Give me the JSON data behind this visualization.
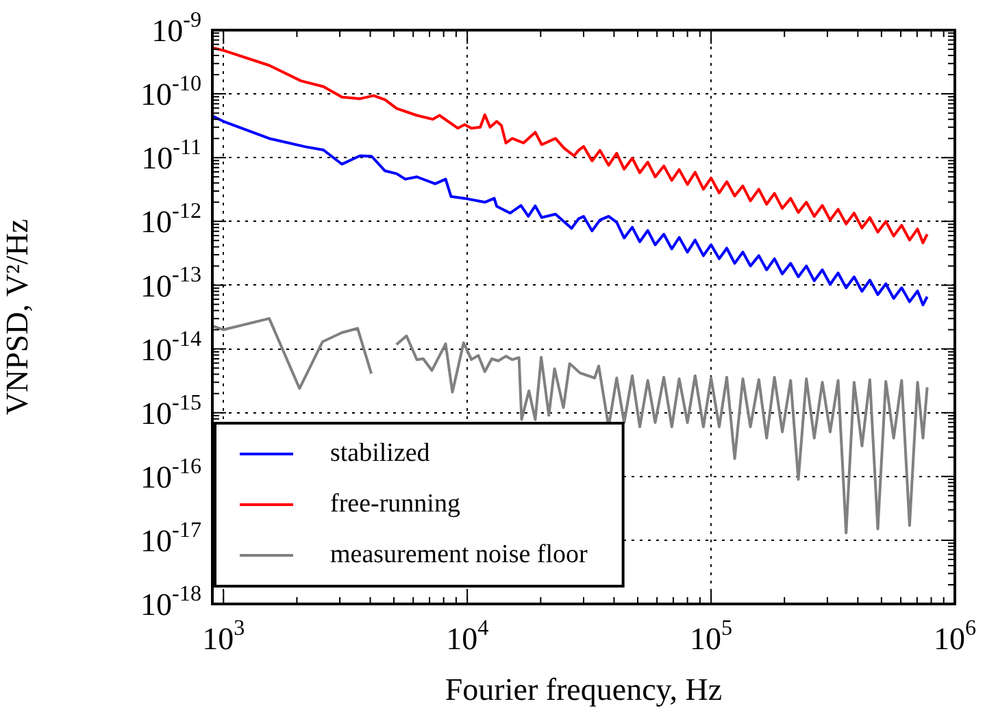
{
  "chart_data": {
    "type": "line",
    "xlabel": "Fourier frequency, Hz",
    "ylabel": "VNPSD, V²/Hz",
    "log": "xy",
    "grid": true,
    "legend": "bottom left",
    "xlim": [
      900,
      1000000
    ],
    "ylim": [
      1e-18,
      1e-09
    ],
    "xticks": [
      {
        "value": 1000,
        "label": "10$^{3}$"
      },
      {
        "value": 10000,
        "label": "10$^{4}$"
      },
      {
        "value": 100000,
        "label": "10$^{5}$"
      },
      {
        "value": 1000000,
        "label": "10$^{6}$"
      }
    ],
    "yticks": [
      {
        "value": 1e-18,
        "label": "10$^{-18}$"
      },
      {
        "value": 1e-17,
        "label": "10$^{-17}$"
      },
      {
        "value": 1e-16,
        "label": "10$^{-16}$"
      },
      {
        "value": 1e-15,
        "label": "10$^{-15}$"
      },
      {
        "value": 1e-14,
        "label": "10$^{-14}$"
      },
      {
        "value": 1e-13,
        "label": "10$^{-13}$"
      },
      {
        "value": 1e-12,
        "label": "10$^{-12}$"
      },
      {
        "value": 1e-11,
        "label": "10$^{-11}$"
      },
      {
        "value": 1e-10,
        "label": "10$^{-10}$"
      },
      {
        "value": 1e-09,
        "label": "10$^{-9}$"
      }
    ],
    "series": [
      {
        "name": "stabilized",
        "color": "#0000ff",
        "x": [
          900,
          1000,
          1540,
          2170,
          2570,
          3060,
          3630,
          4050,
          4600,
          5130,
          5570,
          6210,
          7380,
          8150,
          8580,
          9750,
          11800,
          12900,
          13200,
          15000,
          16600,
          17800,
          19000,
          20200,
          23000,
          26800,
          28600,
          30000,
          32500,
          35000,
          38000,
          41000,
          44000,
          47500,
          51000,
          55000,
          59000,
          64000,
          69000,
          74000,
          80000,
          86000,
          93000,
          100000,
          108000,
          116000,
          125000,
          135000,
          145000,
          157000,
          169000,
          182000,
          196000,
          212000,
          228000,
          246000,
          265000,
          286000,
          308000,
          332000,
          358000,
          386000,
          416000,
          448000,
          483000,
          521000,
          561000,
          605000,
          652000,
          703000,
          740000,
          770000
        ],
        "values": [
          4.5e-11,
          3.7e-11,
          2e-11,
          1.48e-11,
          1.32e-11,
          7.9e-12,
          1.07e-11,
          1.05e-11,
          6.2e-12,
          5.6e-12,
          4.6e-12,
          5e-12,
          3.9e-12,
          4.6e-12,
          2.45e-12,
          2.3e-12,
          2e-12,
          2.3e-12,
          1.73e-12,
          1.35e-12,
          1.78e-12,
          1.2e-12,
          1.75e-12,
          1.15e-12,
          1.3e-12,
          7.8e-13,
          1.1e-12,
          1.2e-12,
          7.1e-13,
          1.05e-12,
          1.2e-12,
          9.7e-13,
          5.5e-13,
          8.1e-13,
          4.8e-13,
          7.2e-13,
          4.3e-13,
          6.3e-13,
          3.7e-13,
          5.6e-13,
          3.3e-13,
          5.1e-13,
          2.9e-13,
          4.3e-13,
          2.6e-13,
          3.8e-13,
          2.2e-13,
          3.3e-13,
          2e-13,
          2.9e-13,
          1.74e-13,
          2.6e-13,
          1.5e-13,
          2.2e-13,
          1.35e-13,
          2e-13,
          1.17e-13,
          1.74e-13,
          1.03e-13,
          1.55e-13,
          9.1e-14,
          1.35e-13,
          8e-14,
          1.2e-13,
          7.1e-14,
          1.05e-13,
          6.2e-14,
          9.1e-14,
          5.5e-14,
          8.1e-14,
          4.9e-14,
          6.6e-14
        ]
      },
      {
        "name": "free-running",
        "color": "#ff0000",
        "x": [
          900,
          1000,
          1540,
          2080,
          2570,
          3060,
          3630,
          4130,
          4600,
          5130,
          6210,
          7210,
          7690,
          9140,
          9750,
          10400,
          11300,
          11800,
          12400,
          13200,
          13800,
          14400,
          15300,
          17000,
          19000,
          20200,
          23000,
          25000,
          27400,
          28600,
          30000,
          32500,
          35000,
          38000,
          41000,
          44000,
          47500,
          51000,
          55000,
          59000,
          64000,
          69000,
          74000,
          80000,
          86000,
          93000,
          100000,
          108000,
          116000,
          125000,
          135000,
          145000,
          157000,
          169000,
          182000,
          196000,
          212000,
          228000,
          246000,
          265000,
          286000,
          308000,
          332000,
          358000,
          386000,
          416000,
          448000,
          483000,
          521000,
          561000,
          605000,
          652000,
          703000,
          740000,
          770000
        ],
        "values": [
          5.3e-10,
          4.8e-10,
          2.8e-10,
          1.6e-10,
          1.3e-10,
          8.9e-11,
          8.4e-11,
          9.4e-11,
          8.1e-11,
          5.9e-11,
          4.6e-11,
          4e-11,
          4.6e-11,
          2.9e-11,
          3.3e-11,
          2.9e-11,
          3e-11,
          4.7e-11,
          3e-11,
          3.7e-11,
          3.2e-11,
          1.7e-11,
          2e-11,
          1.7e-11,
          2.5e-11,
          1.6e-11,
          2e-11,
          1.4e-11,
          1.07e-11,
          1.3e-11,
          1.5e-11,
          8.9e-12,
          1.3e-11,
          7.6e-12,
          1.17e-11,
          6.6e-12,
          9.8e-12,
          5.8e-12,
          8.5e-12,
          5e-12,
          7.4e-12,
          4.4e-12,
          6.5e-12,
          3.8e-12,
          5.9e-12,
          3.2e-12,
          4.8e-12,
          2.8e-12,
          4.2e-12,
          2.5e-12,
          3.6e-12,
          2.1e-12,
          3.2e-12,
          1.86e-12,
          2.75e-12,
          1.6e-12,
          2.3e-12,
          1.38e-12,
          2e-12,
          1.2e-12,
          1.78e-12,
          1.05e-12,
          1.55e-12,
          9.1e-13,
          1.35e-12,
          7.9e-13,
          1.15e-12,
          6.8e-13,
          1e-12,
          5.9e-13,
          8.7e-13,
          5.1e-13,
          7.6e-13,
          4.6e-13,
          6.3e-13
        ]
      },
      {
        "name": "measurement noise floor",
        "color": "#808080",
        "x": [
          900,
          1000,
          1540,
          2050,
          2550,
          3060,
          3550,
          4040,
          4450,
          5120,
          5630,
          6210,
          6600,
          7160,
          8150,
          8690,
          9660,
          10400,
          11100,
          11800,
          12600,
          13400,
          14400,
          15300,
          16300,
          16700,
          17900,
          19000,
          20100,
          21600,
          22800,
          24800,
          26300,
          29000,
          33300,
          34600,
          38000,
          41000,
          44000,
          47500,
          51000,
          55000,
          59000,
          64000,
          69000,
          74000,
          80000,
          86000,
          93000,
          100000,
          108000,
          116000,
          125000,
          135000,
          145000,
          157000,
          169000,
          182000,
          196000,
          212000,
          228000,
          246000,
          265000,
          286000,
          308000,
          332000,
          358000,
          386000,
          416000,
          448000,
          483000,
          521000,
          561000,
          605000,
          652000,
          703000,
          740000,
          770000
        ],
        "values": [
          2.3e-14,
          2e-14,
          3e-14,
          2.4e-15,
          1.3e-14,
          1.8e-14,
          2.1e-14,
          4.1e-15,
          null,
          1.17e-14,
          1.6e-14,
          6.8e-15,
          7e-15,
          4.6e-15,
          1.2e-14,
          2.1e-15,
          1.25e-14,
          6.8e-15,
          7.9e-15,
          4.4e-15,
          7e-15,
          6.5e-15,
          7.7e-15,
          6.8e-15,
          7.3e-15,
          7.8e-16,
          2.2e-15,
          7.8e-16,
          7.4e-15,
          9.1e-16,
          4.9e-15,
          1.2e-15,
          5.9e-15,
          4.2e-15,
          3.5e-15,
          5.4e-15,
          6e-16,
          3.5e-15,
          7e-16,
          3.8e-15,
          6e-16,
          3.2e-15,
          7e-16,
          3.6e-15,
          6e-16,
          3.4e-15,
          7e-16,
          3.8e-15,
          6e-16,
          3.5e-15,
          6e-16,
          3.6e-15,
          1.9e-16,
          3.4e-15,
          6e-16,
          3.3e-15,
          4e-16,
          3.6e-15,
          5e-16,
          3.2e-15,
          9e-17,
          3.4e-15,
          4e-16,
          3e-15,
          5e-16,
          3.2e-15,
          1.3e-17,
          3e-15,
          3e-16,
          3.3e-15,
          1.5e-17,
          3.1e-15,
          4e-16,
          3.2e-15,
          1.7e-17,
          3e-15,
          4e-16,
          2.5e-15
        ]
      }
    ]
  }
}
